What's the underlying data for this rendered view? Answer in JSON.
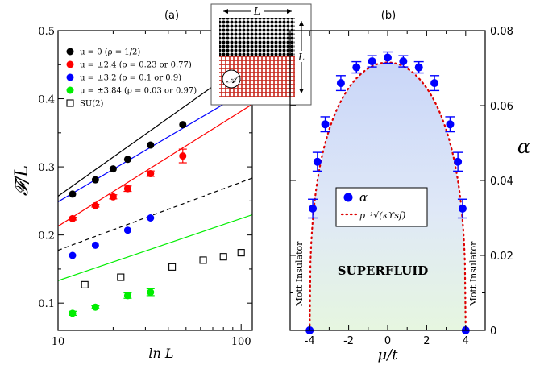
{
  "chart_data": [
    {
      "panel": "(a)",
      "type": "scatter",
      "xscale": "log",
      "xlim": [
        10,
        115
      ],
      "ylim": [
        0.06,
        0.5
      ],
      "xlabel": "ln L",
      "ylabel": "𝓕/L",
      "x_ticks": [
        10,
        100
      ],
      "y_ticks": [
        0.1,
        0.2,
        0.3,
        0.4,
        0.5
      ],
      "series": [
        {
          "name": "μ = 0 (ρ = 1/2)",
          "color": "#000000",
          "marker": "filled-circle",
          "x": [
            12,
            16,
            20,
            24,
            32,
            48
          ],
          "y": [
            0.26,
            0.281,
            0.297,
            0.311,
            0.332,
            0.362
          ],
          "fit": {
            "a": 0.0828,
            "b": 0.0663,
            "x_range": [
              10,
              115
            ],
            "style": "solid"
          }
        },
        {
          "name": "μ = ±2.4 (ρ = 0.23 or 0.77)",
          "color": "#ff0000",
          "marker": "filled-circle",
          "x": [
            12,
            16,
            20,
            24,
            32,
            48
          ],
          "y": [
            0.224,
            0.243,
            0.256,
            0.268,
            0.29,
            0.316
          ],
          "err": [
            0.002,
            0.002,
            0.003,
            0.004,
            0.004,
            0.01
          ],
          "fit": {
            "a": 0.0733,
            "b": 0.0441,
            "x_range": [
              10,
              115
            ],
            "style": "solid"
          }
        },
        {
          "name": "μ = ±3.2 (ρ = 0.1 or 0.9)",
          "color": "#0000ff",
          "marker": "filled-circle",
          "x": [
            12,
            16,
            24,
            32
          ],
          "y": [
            0.17,
            0.185,
            0.207,
            0.225
          ],
          "fit": {
            "a": 0.0688,
            "b": 0.0903,
            "x_range": [
              10,
              115
            ],
            "style": "solid"
          }
        },
        {
          "name": "μ = ±3.84 (ρ = 0.03 or 0.97)",
          "color": "#00ee00",
          "marker": "filled-circle",
          "x": [
            12,
            16,
            24,
            32
          ],
          "y": [
            0.085,
            0.094,
            0.111,
            0.116
          ],
          "err": [
            0.003,
            0.002,
            0.004,
            0.005
          ],
          "fit": {
            "a": 0.0396,
            "b": 0.0418,
            "x_range": [
              10,
              115
            ],
            "style": "solid"
          }
        },
        {
          "name": "SU(2)",
          "color": "#000000",
          "marker": "open-square",
          "x": [
            14,
            22,
            42,
            62,
            80,
            100
          ],
          "y": [
            0.127,
            0.138,
            0.153,
            0.163,
            0.168,
            0.174
          ],
          "fit": {
            "a": 0.0434,
            "b": 0.0776,
            "x_range": [
              10,
              115
            ],
            "style": "dashed"
          }
        }
      ],
      "legend_position": "top-left",
      "inset": {
        "label_top": "L",
        "label_side": "L",
        "region_label": "𝒜",
        "upper_color": "#000000",
        "lower_color": "#c8281e"
      }
    },
    {
      "panel": "(b)",
      "type": "scatter",
      "xlim": [
        -5,
        5
      ],
      "ylim": [
        0,
        0.08
      ],
      "xlabel": "μ/t",
      "ylabel": "α",
      "x_ticks": [
        -4,
        -2,
        0,
        2,
        4
      ],
      "y_ticks": [
        0,
        0.02,
        0.04,
        0.06,
        0.08
      ],
      "series": [
        {
          "name": "α",
          "color": "#0000ff",
          "marker": "filled-circle",
          "x": [
            -4.0,
            -3.84,
            -3.6,
            -3.2,
            -2.4,
            -1.6,
            -0.8,
            0.0,
            0.8,
            1.6,
            2.4,
            3.2,
            3.6,
            3.84,
            4.0
          ],
          "y": [
            0.0,
            0.0325,
            0.045,
            0.055,
            0.066,
            0.0702,
            0.0718,
            0.0728,
            0.0718,
            0.0702,
            0.066,
            0.055,
            0.045,
            0.0325,
            0.0
          ],
          "err": [
            0.0,
            0.0025,
            0.0025,
            0.002,
            0.002,
            0.0015,
            0.0015,
            0.0015,
            0.0015,
            0.0015,
            0.002,
            0.002,
            0.0025,
            0.0025,
            0.0
          ]
        },
        {
          "name": "p⁻¹√(κϒsf)",
          "color": "#dd0000",
          "style": "dotted",
          "amplitude": 0.0715,
          "edges": [
            -4,
            4
          ]
        }
      ],
      "legend_position": "center-left",
      "annotations": {
        "phase": "SUPERFLUID",
        "left_side": "Mott Insulator",
        "right_side": "Mott Insulator"
      }
    }
  ]
}
